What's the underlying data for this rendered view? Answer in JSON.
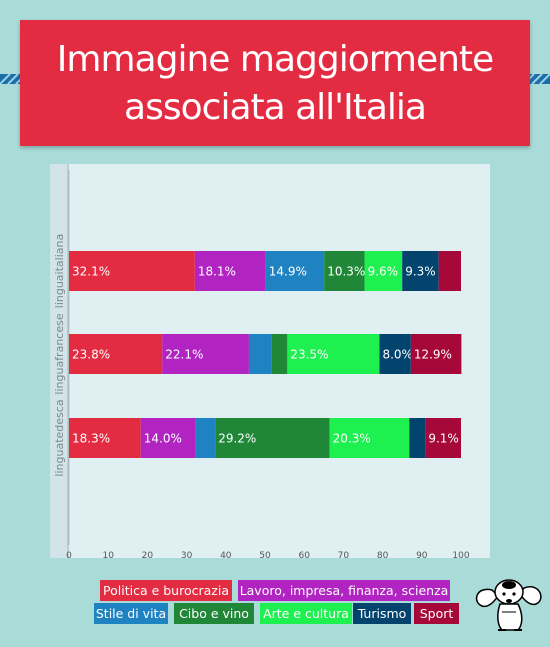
{
  "title_line1": "Immagine maggiormente",
  "title_line2": "associata all'Italia",
  "colors": {
    "background": "#a9dcd8",
    "title_bg": "#e32b41",
    "panel": "#dfeff2"
  },
  "chart_data": {
    "type": "bar",
    "orientation": "horizontal",
    "stacked": true,
    "categories": [
      "linguaitaliana",
      "linguafrancese",
      "linguatedesca"
    ],
    "xlim": [
      0,
      100
    ],
    "xticks": [
      "0",
      "10",
      "20",
      "30",
      "40",
      "50",
      "60",
      "70",
      "80",
      "90",
      "100"
    ],
    "legend_position": "bottom",
    "grid": false,
    "series": [
      {
        "name": "Politica e burocrazia",
        "color": "#e32b41",
        "values": [
          32.1,
          23.8,
          18.3
        ],
        "labels": [
          "32.1%",
          "23.8%",
          "18.3%"
        ]
      },
      {
        "name": "Lavoro, impresa, finanza, scienza",
        "color": "#b124c1",
        "values": [
          18.1,
          22.1,
          14.0
        ],
        "labels": [
          "18.1%",
          "22.1%",
          "14.0%"
        ]
      },
      {
        "name": "Stile di vita",
        "color": "#1f83c2",
        "values": [
          14.9,
          5.8,
          5.0
        ],
        "labels": [
          "14.9%",
          "",
          ""
        ]
      },
      {
        "name": "Cibo e vino",
        "color": "#1f8737",
        "values": [
          10.3,
          4.0,
          29.2
        ],
        "labels": [
          "10.3%",
          "",
          "29.2%"
        ]
      },
      {
        "name": "Arte e cultura",
        "color": "#1ef050",
        "values": [
          9.6,
          23.5,
          20.3
        ],
        "labels": [
          "9.6%",
          "23.5%",
          "20.3%"
        ]
      },
      {
        "name": "Turismo",
        "color": "#03446e",
        "values": [
          9.3,
          8.0,
          4.1
        ],
        "labels": [
          "9.3%",
          "8.0%",
          ""
        ]
      },
      {
        "name": "Sport",
        "color": "#a6083a",
        "values": [
          5.7,
          12.9,
          9.1
        ],
        "labels": [
          "",
          "12.9%",
          "9.1%"
        ]
      }
    ]
  }
}
